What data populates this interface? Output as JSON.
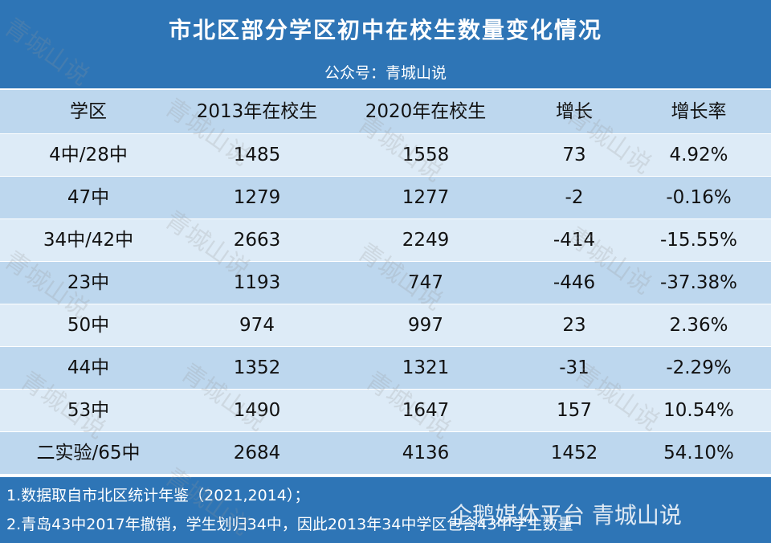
{
  "header": {
    "title": "市北区部分学区初中在校生数量变化情况",
    "subtitle": "公众号：青城山说"
  },
  "table": {
    "columns": [
      "学区",
      "2013年在校生",
      "2020年在校生",
      "增长",
      "增长率"
    ],
    "rows": [
      [
        "4中/28中",
        "1485",
        "1558",
        "73",
        "4.92%"
      ],
      [
        "47中",
        "1279",
        "1277",
        "-2",
        "-0.16%"
      ],
      [
        "34中/42中",
        "2663",
        "2249",
        "-414",
        "-15.55%"
      ],
      [
        "23中",
        "1193",
        "747",
        "-446",
        "-37.38%"
      ],
      [
        "50中",
        "974",
        "997",
        "23",
        "2.36%"
      ],
      [
        "44中",
        "1352",
        "1321",
        "-31",
        "-2.29%"
      ],
      [
        "53中",
        "1490",
        "1647",
        "157",
        "10.54%"
      ],
      [
        "二实验/65中",
        "2684",
        "4136",
        "1452",
        "54.10%"
      ]
    ]
  },
  "notes": [
    "1.数据取自市北区统计年鉴（2021,2014）；",
    "2.青岛43中2017年撤销，学生划归34中，因此2013年34中学区包含43中学生数量"
  ],
  "watermark": "青城山说",
  "overlay_watermark": "企鹅媒体平台 青城山说"
}
